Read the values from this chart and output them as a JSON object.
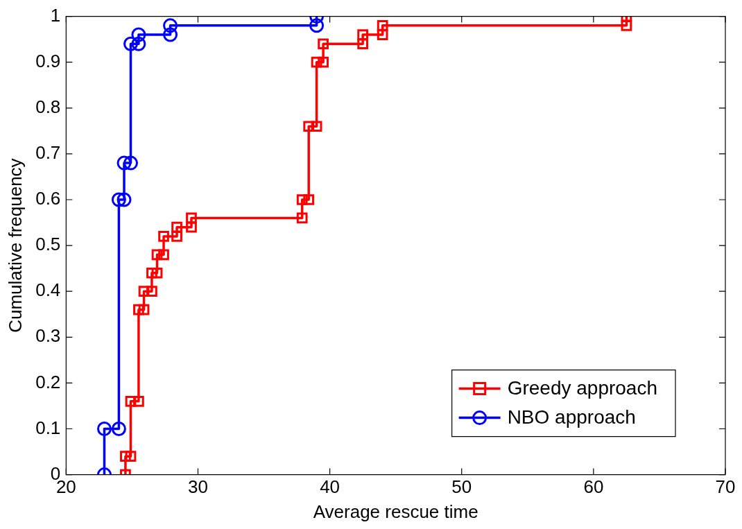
{
  "chart_data": {
    "type": "line",
    "xlabel": "Average rescue time",
    "ylabel": "Cumulative frequency",
    "xlim": [
      20,
      70
    ],
    "xticks": [
      20,
      30,
      40,
      50,
      60,
      70
    ],
    "ylim": [
      0,
      1
    ],
    "yticks": [
      0,
      0.1,
      0.2,
      0.3,
      0.4,
      0.5,
      0.6,
      0.7,
      0.8,
      0.9,
      {
        "value": 1,
        "label": "1"
      }
    ],
    "legend": "bottom right",
    "line_style": "solid",
    "series": [
      {
        "name": "Greedy approach",
        "color": "#ff0000",
        "marker": "square",
        "x": [
          24.5,
          24.5,
          24.9,
          24.9,
          25.5,
          25.5,
          25.9,
          25.9,
          26.5,
          26.5,
          26.9,
          26.9,
          27.4,
          27.4,
          28.4,
          28.4,
          29.5,
          29.5,
          37.9,
          37.9,
          38.4,
          38.4,
          39.0,
          39.0,
          39.5,
          39.5,
          42.5,
          42.5,
          44.0,
          44.0,
          62.5,
          62.5
        ],
        "values": [
          0,
          0.04,
          0.04,
          0.16,
          0.16,
          0.36,
          0.36,
          0.4,
          0.4,
          0.44,
          0.44,
          0.48,
          0.48,
          0.52,
          0.52,
          0.54,
          0.54,
          0.56,
          0.56,
          0.6,
          0.6,
          0.76,
          0.76,
          0.9,
          0.9,
          0.94,
          0.94,
          0.96,
          0.96,
          0.98,
          0.98,
          1
        ]
      },
      {
        "name": "NBO approach",
        "color": "#0000ff",
        "marker": "circle",
        "x": [
          22.9,
          22.9,
          24.0,
          24.0,
          24.4,
          24.4,
          24.9,
          24.9,
          25.5,
          25.5,
          27.9,
          27.9,
          39.0,
          39.0
        ],
        "values": [
          0,
          0.1,
          0.1,
          0.6,
          0.6,
          0.68,
          0.68,
          0.94,
          0.94,
          0.96,
          0.96,
          0.98,
          0.98,
          1
        ]
      }
    ]
  }
}
